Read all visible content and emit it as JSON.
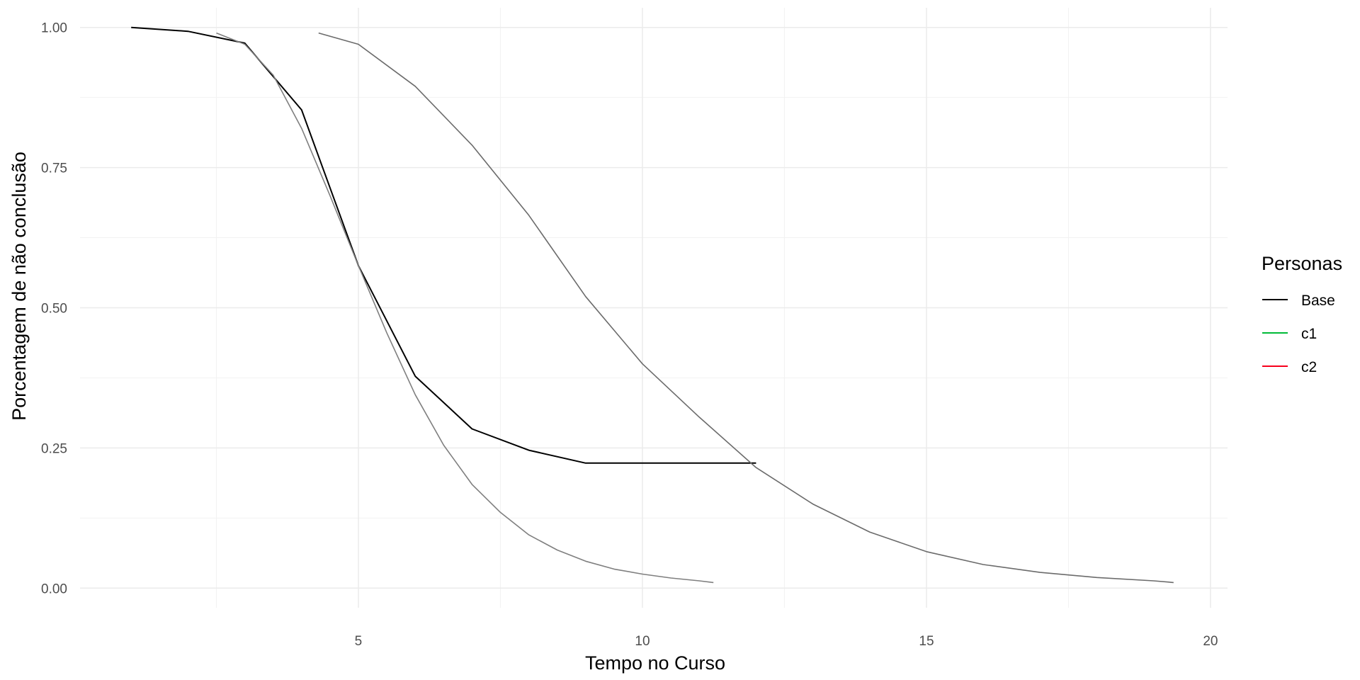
{
  "chart_data": {
    "type": "line",
    "xlabel": "Tempo no Curso",
    "ylabel": "Porcentagem de não conclusão",
    "xlim": [
      0.1,
      20.3
    ],
    "ylim": [
      -0.035,
      1.035
    ],
    "x_ticks": [
      5,
      10,
      15,
      20
    ],
    "x_tick_labels": [
      "5",
      "10",
      "15",
      "20"
    ],
    "y_ticks": [
      0.0,
      0.25,
      0.5,
      0.75,
      1.0
    ],
    "y_tick_labels": [
      "0.00",
      "0.25",
      "0.50",
      "0.75",
      "1.00"
    ],
    "grid": true,
    "legend": {
      "title": "Personas",
      "position": "right",
      "entries": [
        {
          "label": "Base",
          "color": "#000000"
        },
        {
          "label": "c1",
          "color": "#00ba38"
        },
        {
          "label": "c2",
          "color": "#f8001c"
        }
      ]
    },
    "series": [
      {
        "color": "#000000",
        "x": [
          1,
          2,
          3,
          4,
          5,
          6,
          7,
          8,
          9,
          10,
          11,
          12
        ],
        "y": [
          1.0,
          0.993,
          0.972,
          0.853,
          0.575,
          0.378,
          0.284,
          0.246,
          0.223,
          0.223,
          0.223,
          0.223
        ]
      },
      {
        "color": "#7f7f7f",
        "x": [
          2.5,
          3.0,
          3.5,
          4.0,
          4.5,
          5.0,
          5.5,
          6.0,
          6.5,
          7.0,
          7.5,
          8.0,
          8.5,
          9.0,
          9.5,
          10.0,
          10.5,
          11.0,
          11.25
        ],
        "y": [
          0.99,
          0.97,
          0.915,
          0.82,
          0.7,
          0.575,
          0.455,
          0.345,
          0.255,
          0.185,
          0.135,
          0.095,
          0.068,
          0.048,
          0.034,
          0.025,
          0.018,
          0.013,
          0.01
        ]
      },
      {
        "color": "#6b6b6b",
        "x": [
          4.3,
          5.0,
          6.0,
          7.0,
          8.0,
          9.0,
          10.0,
          11.0,
          12.0,
          13.0,
          14.0,
          15.0,
          16.0,
          17.0,
          18.0,
          19.0,
          19.35
        ],
        "y": [
          0.99,
          0.97,
          0.895,
          0.79,
          0.665,
          0.52,
          0.4,
          0.305,
          0.215,
          0.15,
          0.1,
          0.065,
          0.042,
          0.028,
          0.019,
          0.013,
          0.01
        ]
      }
    ]
  }
}
